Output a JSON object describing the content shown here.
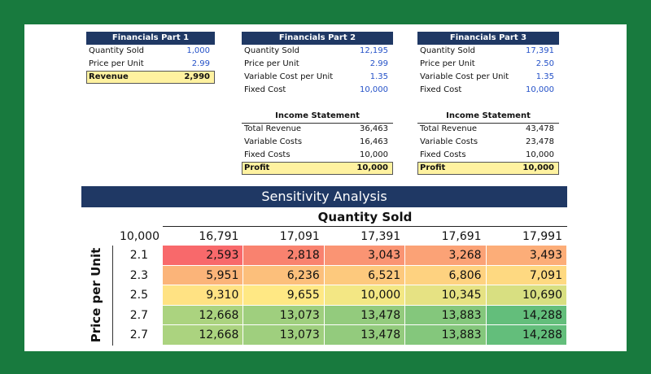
{
  "part1": {
    "title": "Financials Part 1",
    "rows": [
      [
        "Quantity Sold",
        "1,000"
      ],
      [
        "Price per Unit",
        "2.99"
      ]
    ],
    "total": [
      "Revenue",
      "2,990"
    ]
  },
  "part2": {
    "title": "Financials Part 2",
    "rows": [
      [
        "Quantity Sold",
        "12,195"
      ],
      [
        "Price per Unit",
        "2.99"
      ],
      [
        "Variable Cost per Unit",
        "1.35"
      ],
      [
        "Fixed Cost",
        "10,000"
      ]
    ],
    "income": {
      "title": "Income Statement",
      "rows": [
        [
          "Total Revenue",
          "36,463"
        ],
        [
          "Variable Costs",
          "16,463"
        ],
        [
          "Fixed Costs",
          "10,000"
        ]
      ],
      "total": [
        "Profit",
        "10,000"
      ]
    }
  },
  "part3": {
    "title": "Financials Part 3",
    "rows": [
      [
        "Quantity Sold",
        "17,391"
      ],
      [
        "Price per Unit",
        "2.50"
      ],
      [
        "Variable Cost per Unit",
        "1.35"
      ],
      [
        "Fixed Cost",
        "10,000"
      ]
    ],
    "income": {
      "title": "Income Statement",
      "rows": [
        [
          "Total Revenue",
          "43,478"
        ],
        [
          "Variable Costs",
          "23,478"
        ],
        [
          "Fixed Costs",
          "10,000"
        ]
      ],
      "total": [
        "Profit",
        "10,000"
      ]
    }
  },
  "sensitivity": {
    "title": "Sensitivity Analysis",
    "col_title": "Quantity Sold",
    "row_title": "Price per Unit",
    "corner": "10,000",
    "columns": [
      "16,791",
      "17,091",
      "17,391",
      "17,691",
      "17,991"
    ],
    "rows": [
      {
        "label": "2.1",
        "cells": [
          "2,593",
          "2,818",
          "3,043",
          "3,268",
          "3,493"
        ],
        "colors": [
          "#f8696b",
          "#f9826f",
          "#fa9473",
          "#fba276",
          "#fcad78"
        ]
      },
      {
        "label": "2.3",
        "cells": [
          "5,951",
          "6,236",
          "6,521",
          "6,806",
          "7,091"
        ],
        "colors": [
          "#fbb479",
          "#fcbf7b",
          "#fdc97d",
          "#fed280",
          "#fed981"
        ]
      },
      {
        "label": "2.5",
        "cells": [
          "9,310",
          "9,655",
          "10,000",
          "10,345",
          "10,690"
        ],
        "colors": [
          "#ffe283",
          "#ffe884",
          "#f3e784",
          "#e6e283",
          "#d8df81"
        ]
      },
      {
        "label": "2.7",
        "cells": [
          "12,668",
          "13,073",
          "13,478",
          "13,883",
          "14,288"
        ],
        "colors": [
          "#abd37f",
          "#9fcf7e",
          "#93cb7d",
          "#84c77c",
          "#63be7b"
        ]
      },
      {
        "label": "2.7",
        "cells": [
          "12,668",
          "13,073",
          "13,478",
          "13,883",
          "14,288"
        ],
        "colors": [
          "#abd37f",
          "#9fcf7e",
          "#93cb7d",
          "#84c77c",
          "#63be7b"
        ]
      }
    ]
  }
}
